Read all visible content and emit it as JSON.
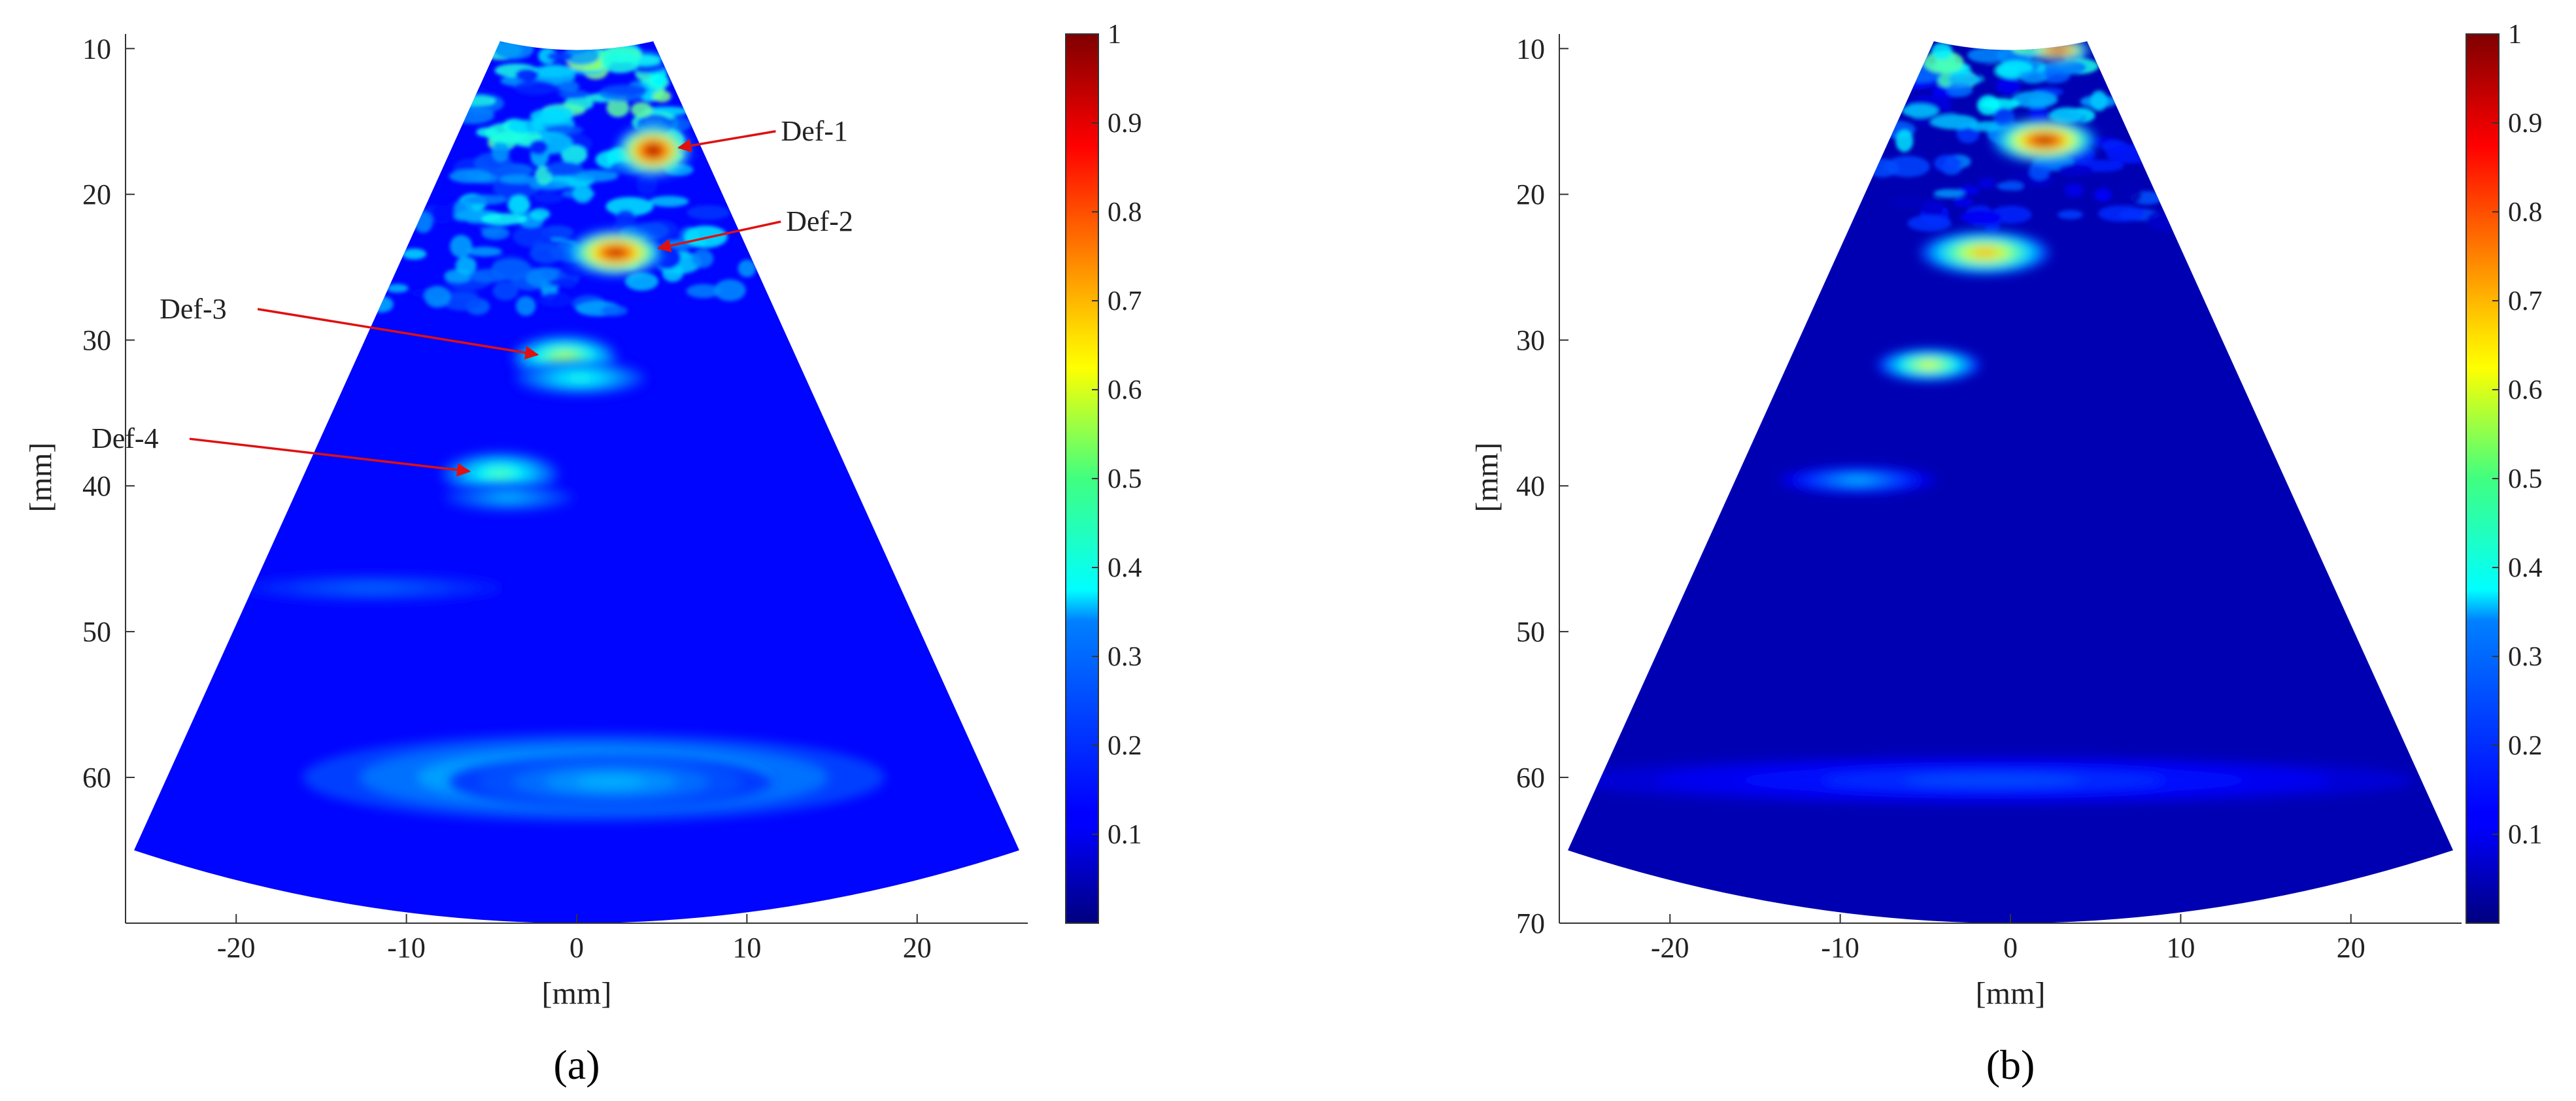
{
  "chart_data": [
    {
      "type": "heatmap",
      "panel_label": "(a)",
      "xlabel": "[mm]",
      "ylabel": "[mm]",
      "xlim": [
        -26.5,
        26.5
      ],
      "ylim": [
        70,
        9
      ],
      "x_ticks": [
        -20,
        -10,
        0,
        10,
        20
      ],
      "y_ticks": [
        10,
        20,
        30,
        40,
        50,
        60
      ],
      "fan": {
        "apex_y": 9.5,
        "half_width_top": 4.5,
        "bottom_depth": 70,
        "edge_x": 26,
        "edge_y": 65
      },
      "colorbar": {
        "colormap": "jet",
        "range": [
          0,
          1
        ],
        "ticks": [
          0.1,
          0.2,
          0.3,
          0.4,
          0.5,
          0.6,
          0.7,
          0.8,
          0.9,
          1
        ]
      },
      "background_level": 0.13,
      "hotspots": [
        {
          "x": 4.5,
          "y": 17,
          "rx": 1.1,
          "ry": 0.9,
          "value": 1.0
        },
        {
          "x": 2.3,
          "y": 24,
          "rx": 1.4,
          "ry": 0.8,
          "value": 0.95
        },
        {
          "x": -0.7,
          "y": 31.2,
          "rx": 1.6,
          "ry": 0.8,
          "value": 0.55
        },
        {
          "x": 0.2,
          "y": 32.6,
          "rx": 2.0,
          "ry": 0.6,
          "value": 0.4
        },
        {
          "x": -4.5,
          "y": 39.2,
          "rx": 1.8,
          "ry": 0.8,
          "value": 0.45
        },
        {
          "x": -4,
          "y": 40.8,
          "rx": 2.0,
          "ry": 0.5,
          "value": 0.3
        },
        {
          "x": -12,
          "y": 47,
          "rx": 4,
          "ry": 0.5,
          "value": 0.22
        },
        {
          "x": 1,
          "y": 60,
          "rx": 9,
          "ry": 1.6,
          "value": 0.38
        },
        {
          "x": 2,
          "y": 60.3,
          "rx": 5,
          "ry": 1.0,
          "value": 0.3
        }
      ],
      "speckle": {
        "y_from": 10,
        "y_to": 28,
        "count": 170,
        "max_value": 0.55
      },
      "annotations": [
        {
          "text": "Def-1",
          "text_x": 12,
          "text_y": 16.3,
          "arrow_to": [
            6.0,
            16.8
          ]
        },
        {
          "text": "Def-2",
          "text_x": 12.3,
          "text_y": 22.5,
          "arrow_to": [
            4.8,
            23.7
          ]
        },
        {
          "text": "Def-3",
          "text_x": -24.5,
          "text_y": 28.5,
          "arrow_to": [
            -2.3,
            31.0
          ]
        },
        {
          "text": "Def-4",
          "text_x": -28.5,
          "text_y": 37.4,
          "arrow_to": [
            -6.3,
            39.0
          ]
        }
      ]
    },
    {
      "type": "heatmap",
      "panel_label": "(b)",
      "xlabel": "[mm]",
      "ylabel": "[mm]",
      "xlim": [
        -26.5,
        26.5
      ],
      "ylim": [
        70,
        9
      ],
      "x_ticks": [
        -20,
        -10,
        0,
        10,
        20
      ],
      "y_ticks": [
        10,
        20,
        30,
        40,
        50,
        60,
        70
      ],
      "fan": {
        "apex_y": 9.5,
        "half_width_top": 4.5,
        "bottom_depth": 70,
        "edge_x": 26,
        "edge_y": 65
      },
      "colorbar": {
        "colormap": "jet",
        "range": [
          0,
          1
        ],
        "ticks": [
          0.1,
          0.2,
          0.3,
          0.4,
          0.5,
          0.6,
          0.7,
          0.8,
          0.9,
          1
        ]
      },
      "background_level": 0.05,
      "hotspots": [
        {
          "x": 2.0,
          "y": 16.3,
          "rx": 1.6,
          "ry": 0.8,
          "value": 0.95
        },
        {
          "x": 2.8,
          "y": 10.1,
          "rx": 1.0,
          "ry": 0.4,
          "value": 1.0
        },
        {
          "x": -1.5,
          "y": 24,
          "rx": 2.0,
          "ry": 0.8,
          "value": 0.7
        },
        {
          "x": -4.8,
          "y": 31.7,
          "rx": 1.6,
          "ry": 0.6,
          "value": 0.6
        },
        {
          "x": -9,
          "y": 39.6,
          "rx": 2.4,
          "ry": 0.5,
          "value": 0.3
        },
        {
          "x": -1,
          "y": 60.2,
          "rx": 13,
          "ry": 0.9,
          "value": 0.2
        }
      ],
      "speckle": {
        "y_from": 10,
        "y_to": 22,
        "count": 90,
        "max_value": 0.5
      },
      "annotations": []
    }
  ]
}
